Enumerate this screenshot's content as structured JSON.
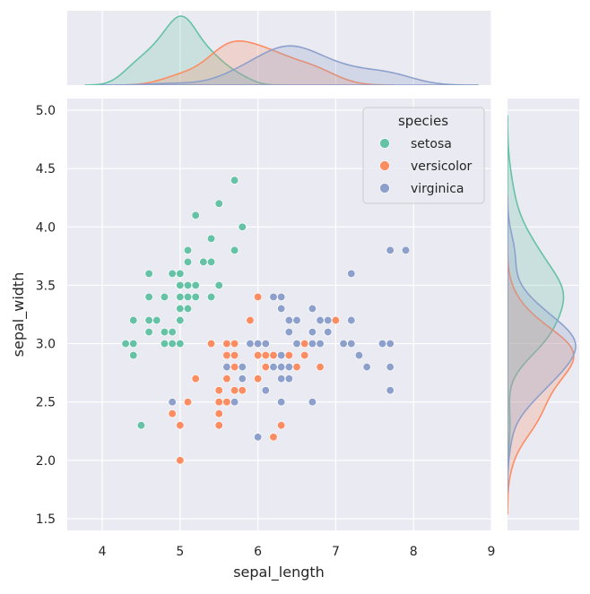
{
  "chart_data": {
    "type": "scatter",
    "xlabel": "sepal_length",
    "ylabel": "sepal_width",
    "xlim": [
      3.55,
      9.0
    ],
    "ylim": [
      1.4,
      5.1
    ],
    "xticks": [
      "4",
      "5",
      "6",
      "7",
      "8",
      "9"
    ],
    "yticks": [
      "1.5",
      "2.0",
      "2.5",
      "3.0",
      "3.5",
      "4.0",
      "4.5",
      "5.0"
    ],
    "grid": true,
    "legend": {
      "title": "species",
      "placement": "top-right"
    },
    "marginals": "kde",
    "series": [
      {
        "name": "setosa",
        "color": "#66c2a5",
        "x": [
          5.1,
          4.9,
          4.7,
          4.6,
          5.0,
          5.4,
          4.6,
          5.0,
          4.4,
          4.9,
          5.4,
          4.8,
          4.8,
          4.3,
          5.8,
          5.7,
          5.4,
          5.1,
          5.7,
          5.1,
          5.4,
          5.1,
          4.6,
          5.1,
          4.8,
          5.0,
          5.0,
          5.2,
          5.2,
          4.7,
          4.8,
          5.4,
          5.2,
          5.5,
          4.9,
          5.0,
          5.5,
          4.9,
          4.4,
          5.1,
          5.0,
          4.5,
          4.4,
          5.0,
          5.1,
          4.8,
          5.1,
          4.6,
          5.3,
          5.0
        ],
        "y": [
          3.5,
          3.0,
          3.2,
          3.1,
          3.6,
          3.9,
          3.4,
          3.4,
          2.9,
          3.1,
          3.7,
          3.4,
          3.0,
          3.0,
          4.0,
          4.4,
          3.9,
          3.5,
          3.8,
          3.8,
          3.4,
          3.7,
          3.6,
          3.3,
          3.4,
          3.0,
          3.4,
          3.5,
          3.4,
          3.2,
          3.1,
          3.4,
          4.1,
          4.2,
          3.1,
          3.2,
          3.5,
          3.6,
          3.0,
          3.4,
          3.5,
          2.3,
          3.2,
          3.5,
          3.8,
          3.0,
          3.8,
          3.2,
          3.7,
          3.3
        ]
      },
      {
        "name": "versicolor",
        "color": "#fc8d62",
        "x": [
          7.0,
          6.4,
          6.9,
          5.5,
          6.5,
          5.7,
          6.3,
          4.9,
          6.6,
          5.2,
          5.0,
          5.9,
          6.0,
          6.1,
          5.6,
          6.7,
          5.6,
          5.8,
          6.2,
          5.6,
          5.9,
          6.1,
          6.3,
          6.1,
          6.4,
          6.6,
          6.8,
          6.7,
          6.0,
          5.7,
          5.5,
          5.5,
          5.8,
          6.0,
          5.4,
          6.0,
          6.7,
          6.3,
          5.6,
          5.5,
          5.5,
          6.1,
          5.8,
          5.0,
          5.6,
          5.7,
          5.7,
          6.2,
          5.1,
          5.7
        ],
        "y": [
          3.2,
          3.2,
          3.1,
          2.3,
          2.8,
          2.8,
          3.3,
          2.4,
          2.9,
          2.7,
          2.0,
          3.0,
          2.2,
          2.9,
          2.9,
          3.1,
          3.0,
          2.7,
          2.2,
          2.5,
          3.2,
          2.8,
          2.5,
          2.8,
          2.9,
          3.0,
          2.8,
          3.0,
          2.9,
          2.6,
          2.4,
          2.4,
          2.7,
          2.7,
          3.0,
          3.4,
          3.1,
          2.3,
          3.0,
          2.5,
          2.6,
          3.0,
          2.6,
          2.3,
          2.7,
          3.0,
          2.9,
          2.9,
          2.5,
          2.8
        ]
      },
      {
        "name": "virginica",
        "color": "#8da0cb",
        "x": [
          6.3,
          5.8,
          7.1,
          6.3,
          6.5,
          7.6,
          4.9,
          7.3,
          6.7,
          7.2,
          6.5,
          6.4,
          6.8,
          5.7,
          5.8,
          6.4,
          6.5,
          7.7,
          7.7,
          6.0,
          6.9,
          5.6,
          7.7,
          6.3,
          6.7,
          7.2,
          6.2,
          6.1,
          6.4,
          7.2,
          7.4,
          7.9,
          6.4,
          6.3,
          6.1,
          7.7,
          6.3,
          6.4,
          6.0,
          6.9,
          6.7,
          6.9,
          5.8,
          6.8,
          6.7,
          6.7,
          6.3,
          6.5,
          6.2,
          5.9
        ],
        "y": [
          3.3,
          2.7,
          3.0,
          2.9,
          3.0,
          3.0,
          2.5,
          2.9,
          2.5,
          3.6,
          3.2,
          2.7,
          3.0,
          2.5,
          2.8,
          3.2,
          3.0,
          3.8,
          2.6,
          2.2,
          3.2,
          2.8,
          2.8,
          2.7,
          3.3,
          3.2,
          2.8,
          3.0,
          2.8,
          3.0,
          2.8,
          3.8,
          2.8,
          2.8,
          2.6,
          3.0,
          3.4,
          3.1,
          3.0,
          3.1,
          3.1,
          3.1,
          2.7,
          3.2,
          3.3,
          3.0,
          2.5,
          3.0,
          3.4,
          3.0
        ]
      }
    ]
  }
}
